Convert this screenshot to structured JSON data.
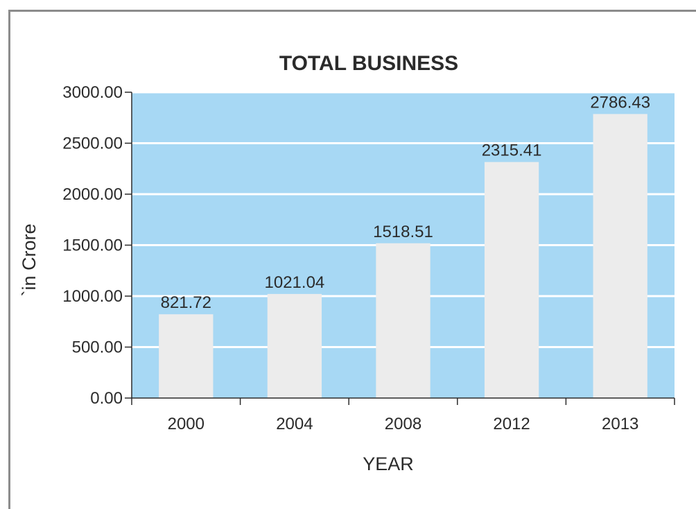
{
  "chart_data": {
    "type": "bar",
    "title": "TOTAL BUSINESS",
    "xlabel": "YEAR",
    "ylabel": "`in Crore",
    "categories": [
      "2000",
      "2004",
      "2008",
      "2012",
      "2013"
    ],
    "values": [
      821.72,
      1021.04,
      1518.51,
      2315.41,
      2786.43
    ],
    "value_labels": [
      "821.72",
      "1021.04",
      "1518.51",
      "2315.41",
      "2786.43"
    ],
    "ylim": [
      0,
      3000
    ],
    "yticks": [
      0,
      500,
      1000,
      1500,
      2000,
      2500,
      3000
    ],
    "ytick_labels": [
      "0.00",
      "500.00",
      "1000.00",
      "1500.00",
      "2000.00",
      "2500.00",
      "3000.00"
    ],
    "grid": true,
    "legend": "none",
    "colors": {
      "plot_background": "#a7d8f4",
      "bar_fill": "#ececec",
      "gridline": "#ffffff",
      "axis": "#2b2b2b",
      "frame": "#8c8c8c"
    }
  }
}
